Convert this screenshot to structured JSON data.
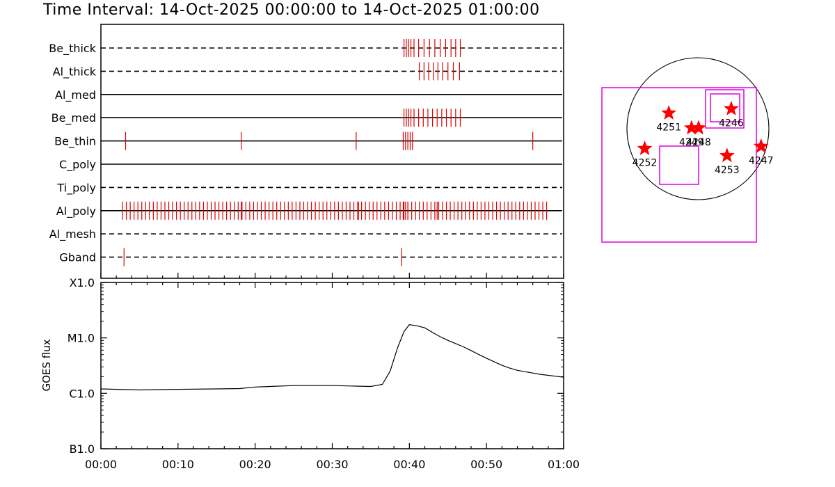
{
  "title": "Time Interval: 14-Oct-2025 00:00:00 to 14-Oct-2025 01:00:00",
  "colors": {
    "events": "#e00000",
    "axes": "#000000",
    "fov": "#e000e0",
    "ar_marker": "#ff0000"
  },
  "chart_data": [
    {
      "type": "timeline",
      "x_tick_labels": [
        "00:00",
        "00:10",
        "00:20",
        "00:30",
        "00:40",
        "00:50",
        "01:00"
      ],
      "xlim_minutes": [
        0,
        60
      ],
      "rows": [
        {
          "name": "Be_thick",
          "line": "dashed",
          "events_min": [
            39.3,
            39.6,
            39.9,
            40.2,
            40.6,
            41.2,
            41.9,
            42.6,
            43.3,
            44.0,
            44.7,
            45.4,
            46.0,
            46.6
          ]
        },
        {
          "name": "Al_thick",
          "line": "dashed",
          "events_min": [
            41.3,
            41.9,
            42.5,
            43.1,
            43.7,
            44.3,
            45.0,
            45.7,
            46.5
          ]
        },
        {
          "name": "Al_med",
          "line": "solid",
          "events_min": []
        },
        {
          "name": "Be_med",
          "line": "solid",
          "events_min": [
            39.3,
            39.6,
            39.9,
            40.2,
            40.6,
            41.2,
            41.8,
            42.4,
            43.0,
            43.6,
            44.2,
            44.8,
            45.4,
            46.0,
            46.6
          ]
        },
        {
          "name": "Be_thin",
          "line": "solid",
          "events_min": [
            3.2,
            18.2,
            33.1,
            39.2,
            39.5,
            39.8,
            40.1,
            40.4,
            56.0
          ]
        },
        {
          "name": "C_poly",
          "line": "solid",
          "events_min": []
        },
        {
          "name": "Ti_poly",
          "line": "dashed",
          "events_min": []
        },
        {
          "name": "Al_poly",
          "line": "solid",
          "events_min": "every ~0.5 min from 2.8 to 57.8"
        },
        {
          "name": "Al_mesh",
          "line": "dashed",
          "events_min": []
        },
        {
          "name": "Gband",
          "line": "dashed",
          "events_min": [
            3.0,
            39.0
          ]
        }
      ]
    },
    {
      "type": "line",
      "ylabel": "GOES flux",
      "y_tick_labels": [
        "B1.0",
        "C1.0",
        "M1.0",
        "X1.0"
      ],
      "y_scale": "log",
      "ylim_decades": [
        -7,
        -4
      ],
      "x_tick_labels": [
        "00:00",
        "00:10",
        "00:20",
        "00:30",
        "00:40",
        "00:50",
        "01:00"
      ],
      "series": [
        {
          "x_min": [
            0,
            5,
            10,
            15,
            18,
            20,
            25,
            30,
            33,
            35,
            36.5,
            37.5,
            38.5,
            39.3,
            40,
            41,
            42,
            43,
            44,
            45,
            46,
            47,
            48,
            49,
            50,
            51,
            52,
            53,
            54,
            55,
            57,
            60
          ],
          "flux": [
            1.2e-06,
            1.15e-06,
            1.18e-06,
            1.2e-06,
            1.22e-06,
            1.3e-06,
            1.38e-06,
            1.38e-06,
            1.35e-06,
            1.33e-06,
            1.45e-06,
            2.5e-06,
            6.8e-06,
            1.3e-05,
            1.73e-05,
            1.65e-05,
            1.52e-05,
            1.25e-05,
            1.05e-05,
            9e-06,
            7.9e-06,
            6.9e-06,
            5.9e-06,
            5e-06,
            4.3e-06,
            3.7e-06,
            3.2e-06,
            2.85e-06,
            2.6e-06,
            2.45e-06,
            2.2e-06,
            1.95e-06
          ]
        }
      ]
    },
    {
      "type": "scatter",
      "description_labels": [
        "4246",
        "4247",
        "4248",
        "4249",
        "4251",
        "4252",
        "4253"
      ],
      "regions": [
        {
          "label": "4251",
          "x": -0.41,
          "y": 0.22
        },
        {
          "label": "4249",
          "x": -0.09,
          "y": 0.01
        },
        {
          "label": "4248",
          "x": 0.01,
          "y": 0.01
        },
        {
          "label": "4246",
          "x": 0.47,
          "y": 0.28
        },
        {
          "label": "4252",
          "x": -0.75,
          "y": -0.28
        },
        {
          "label": "4253",
          "x": 0.41,
          "y": -0.38
        },
        {
          "label": "4247",
          "x": 0.89,
          "y": -0.25
        }
      ]
    }
  ]
}
